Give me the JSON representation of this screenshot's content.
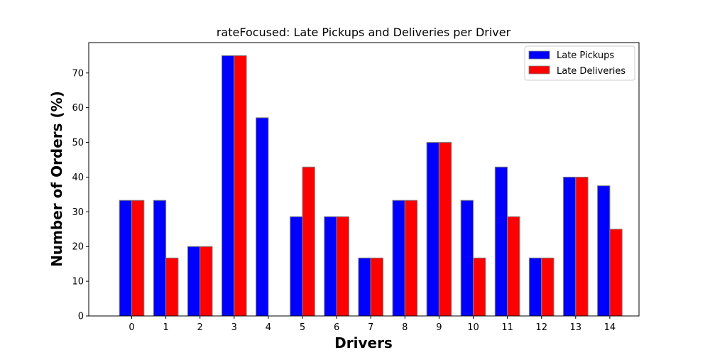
{
  "chart_data": {
    "type": "bar",
    "title": "rateFocused: Late Pickups and Deliveries per Driver",
    "xlabel": "Drivers",
    "ylabel": "Number of Orders (%)",
    "categories": [
      "0",
      "1",
      "2",
      "3",
      "4",
      "5",
      "6",
      "7",
      "8",
      "9",
      "10",
      "11",
      "12",
      "13",
      "14"
    ],
    "series": [
      {
        "name": "Late Pickups",
        "color": "#0000ff",
        "values": [
          33.3,
          33.3,
          20.0,
          75.0,
          57.1,
          28.6,
          28.6,
          16.7,
          33.3,
          50.0,
          33.3,
          42.9,
          16.7,
          40.0,
          37.5
        ]
      },
      {
        "name": "Late Deliveries",
        "color": "#ff0000",
        "values": [
          33.3,
          16.7,
          20.0,
          75.0,
          0,
          42.9,
          28.6,
          16.7,
          33.3,
          50.0,
          16.7,
          28.6,
          16.7,
          40.0,
          25.0
        ]
      }
    ],
    "yticks": [
      0,
      10,
      20,
      30,
      40,
      50,
      60,
      70
    ],
    "ylim": [
      0,
      78.75
    ],
    "legend": "top-right",
    "grid": false,
    "bar_edge_color": "#808080"
  }
}
